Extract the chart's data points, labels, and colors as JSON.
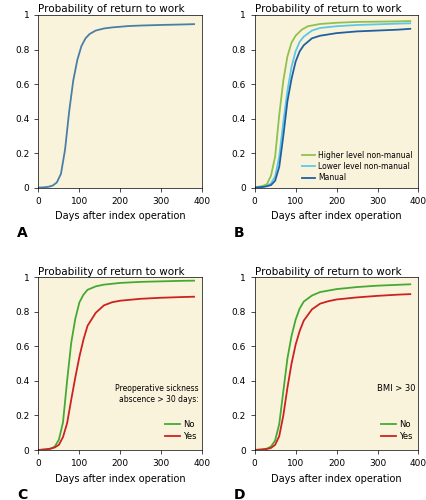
{
  "title": "Probability of return to work",
  "xlabel": "Days after index operation",
  "xlim": [
    0,
    400
  ],
  "ylim": [
    0,
    1.0
  ],
  "xticks": [
    0,
    100,
    200,
    300,
    400
  ],
  "yticks": [
    0,
    0.2,
    0.4,
    0.6,
    0.8,
    1
  ],
  "ytick_labels": [
    "0",
    "0.2",
    "0.4",
    "0.6",
    "0.8",
    "1"
  ],
  "bg_color": "#faf3dc",
  "subplot_labels": [
    "A",
    "B",
    "C",
    "D"
  ],
  "curve_A": {
    "color": "#4a7fa5",
    "x": [
      0,
      15,
      25,
      35,
      45,
      55,
      65,
      75,
      85,
      95,
      105,
      115,
      125,
      140,
      160,
      180,
      200,
      220,
      250,
      280,
      310,
      350,
      380
    ],
    "y": [
      0,
      0.002,
      0.005,
      0.012,
      0.03,
      0.08,
      0.22,
      0.44,
      0.62,
      0.74,
      0.82,
      0.865,
      0.89,
      0.91,
      0.922,
      0.928,
      0.932,
      0.936,
      0.939,
      0.941,
      0.943,
      0.945,
      0.947
    ]
  },
  "curve_B": {
    "higher": {
      "color": "#90c050",
      "label": "Higher level non-manual",
      "x": [
        0,
        20,
        30,
        40,
        50,
        60,
        70,
        80,
        90,
        100,
        115,
        130,
        160,
        200,
        250,
        350,
        380
      ],
      "y": [
        0,
        0.01,
        0.02,
        0.07,
        0.18,
        0.42,
        0.62,
        0.76,
        0.84,
        0.88,
        0.915,
        0.935,
        0.948,
        0.955,
        0.96,
        0.963,
        0.965
      ]
    },
    "lower": {
      "color": "#5bc8e8",
      "label": "Lower level non-manual",
      "x": [
        0,
        20,
        30,
        40,
        50,
        60,
        70,
        80,
        90,
        100,
        110,
        120,
        140,
        160,
        200,
        250,
        350,
        380
      ],
      "y": [
        0,
        0.005,
        0.01,
        0.025,
        0.065,
        0.18,
        0.38,
        0.56,
        0.7,
        0.79,
        0.845,
        0.875,
        0.91,
        0.925,
        0.935,
        0.942,
        0.95,
        0.952
      ]
    },
    "manual": {
      "color": "#2060a0",
      "label": "Manual",
      "x": [
        0,
        20,
        30,
        40,
        50,
        60,
        70,
        80,
        90,
        100,
        110,
        120,
        140,
        160,
        200,
        250,
        350,
        380
      ],
      "y": [
        0,
        0.004,
        0.008,
        0.015,
        0.04,
        0.12,
        0.3,
        0.5,
        0.63,
        0.73,
        0.79,
        0.825,
        0.865,
        0.88,
        0.895,
        0.905,
        0.915,
        0.92
      ]
    }
  },
  "curve_C": {
    "no": {
      "color": "#44aa33",
      "label": "No",
      "x": [
        0,
        20,
        30,
        40,
        50,
        60,
        70,
        80,
        90,
        100,
        110,
        120,
        140,
        160,
        200,
        250,
        300,
        350,
        380
      ],
      "y": [
        0,
        0.004,
        0.008,
        0.02,
        0.06,
        0.16,
        0.4,
        0.62,
        0.76,
        0.855,
        0.9,
        0.928,
        0.948,
        0.958,
        0.968,
        0.974,
        0.977,
        0.98,
        0.981
      ]
    },
    "yes": {
      "color": "#cc2222",
      "label": "Yes",
      "x": [
        0,
        20,
        30,
        40,
        50,
        60,
        70,
        80,
        90,
        100,
        110,
        120,
        140,
        160,
        180,
        200,
        250,
        300,
        350,
        380
      ],
      "y": [
        0,
        0.004,
        0.008,
        0.015,
        0.03,
        0.075,
        0.155,
        0.29,
        0.42,
        0.54,
        0.64,
        0.72,
        0.795,
        0.838,
        0.856,
        0.865,
        0.876,
        0.882,
        0.886,
        0.888
      ]
    },
    "legend_title": "Preoperative sickness\nabscence > 30 days:"
  },
  "curve_D": {
    "no": {
      "color": "#44aa33",
      "label": "No",
      "x": [
        0,
        20,
        30,
        40,
        50,
        60,
        70,
        80,
        90,
        100,
        110,
        120,
        140,
        160,
        200,
        250,
        300,
        350,
        380
      ],
      "y": [
        0,
        0.004,
        0.008,
        0.02,
        0.055,
        0.15,
        0.34,
        0.53,
        0.66,
        0.755,
        0.82,
        0.86,
        0.895,
        0.915,
        0.932,
        0.944,
        0.952,
        0.957,
        0.96
      ]
    },
    "yes": {
      "color": "#cc2222",
      "label": "Yes",
      "x": [
        0,
        20,
        30,
        40,
        50,
        60,
        70,
        80,
        90,
        100,
        110,
        120,
        140,
        160,
        180,
        200,
        250,
        300,
        350,
        380
      ],
      "y": [
        0,
        0.003,
        0.006,
        0.012,
        0.03,
        0.08,
        0.2,
        0.36,
        0.5,
        0.61,
        0.69,
        0.75,
        0.815,
        0.848,
        0.862,
        0.872,
        0.884,
        0.893,
        0.9,
        0.903
      ]
    },
    "legend_title": "BMI > 30"
  }
}
